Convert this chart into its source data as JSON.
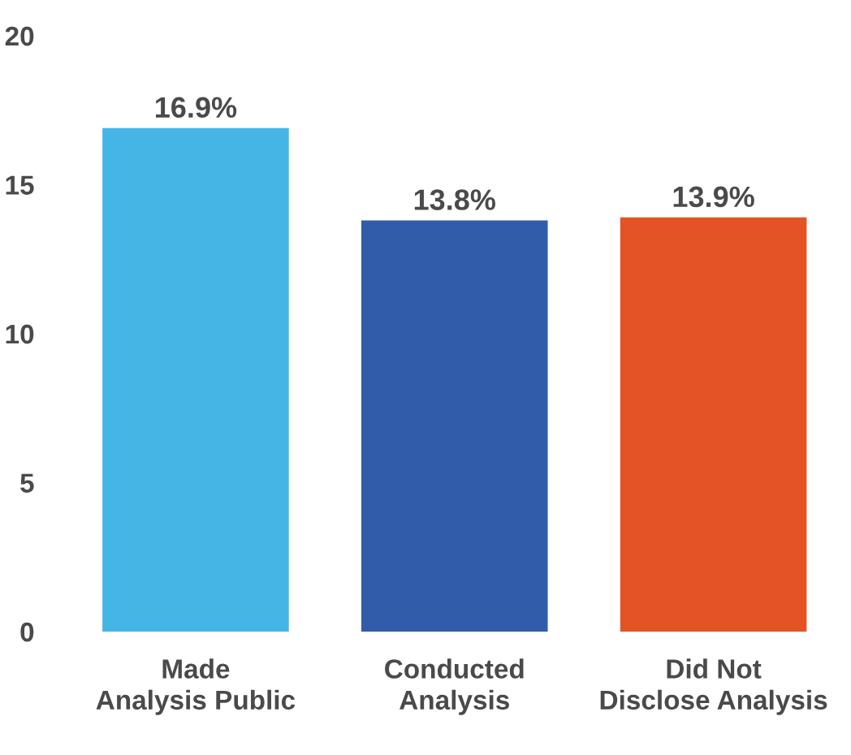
{
  "chart_data": {
    "type": "bar",
    "categories": [
      "Made\nAnalysis Public",
      "Conducted\nAnalysis",
      "Did Not\nDisclose Analysis"
    ],
    "values": [
      16.9,
      13.8,
      13.9
    ],
    "colors": [
      "#45b5e5",
      "#305caa",
      "#e35325"
    ],
    "value_labels": [
      "16.9%",
      "13.8%",
      "13.9%"
    ],
    "ylim": [
      0,
      20
    ],
    "yticks": [
      0,
      5,
      10,
      15,
      20
    ],
    "grid": false,
    "legend": false
  }
}
